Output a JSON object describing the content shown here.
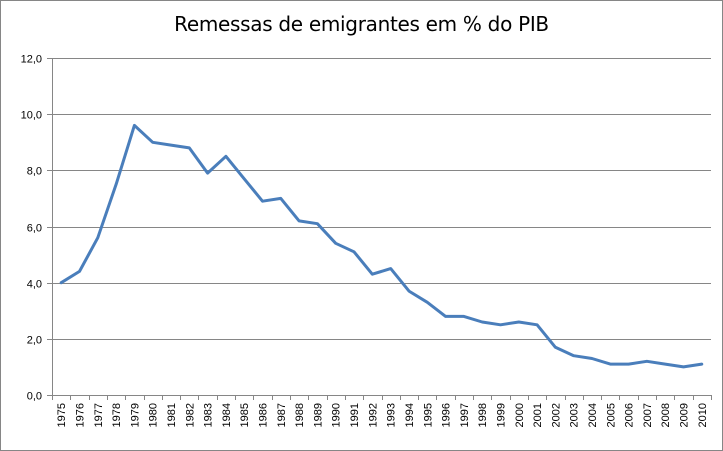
{
  "chart_data": {
    "type": "line",
    "title": "Remessas de emigrantes em % do PIB",
    "xlabel": "",
    "ylabel": "",
    "ylim": [
      0,
      12
    ],
    "y_ticks": [
      "0,0",
      "2,0",
      "4,0",
      "6,0",
      "8,0",
      "10,0",
      "12,0"
    ],
    "grid": true,
    "legend": "none",
    "categories": [
      "1975",
      "1976",
      "1977",
      "1978",
      "1979",
      "1980",
      "1981",
      "1982",
      "1983",
      "1984",
      "1985",
      "1986",
      "1987",
      "1988",
      "1989",
      "1990",
      "1991",
      "1992",
      "1993",
      "1994",
      "1995",
      "1996",
      "1997",
      "1998",
      "1999",
      "2000",
      "2001",
      "2002",
      "2003",
      "2004",
      "2005",
      "2006",
      "2007",
      "2008",
      "2009",
      "2010"
    ],
    "series": [
      {
        "name": "",
        "color": "#4a7ebb",
        "values": [
          4.0,
          4.4,
          5.6,
          7.5,
          9.6,
          9.0,
          8.9,
          8.8,
          7.9,
          8.5,
          7.7,
          6.9,
          7.0,
          6.2,
          6.1,
          5.4,
          5.1,
          4.3,
          4.5,
          3.7,
          3.3,
          2.8,
          2.8,
          2.6,
          2.5,
          2.6,
          2.5,
          1.7,
          1.4,
          1.3,
          1.1,
          1.1,
          1.2,
          1.1,
          1.0,
          1.1
        ]
      }
    ],
    "colors": {
      "gridline": "#868686",
      "axis": "#868686",
      "line": "#4a7ebb"
    }
  }
}
